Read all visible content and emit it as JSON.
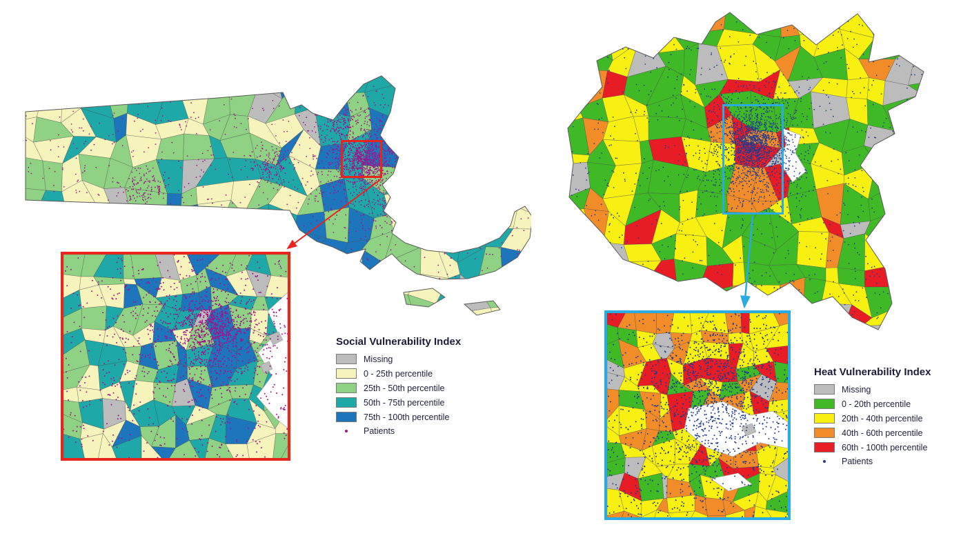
{
  "left_panel": {
    "legend": {
      "title": "Social Vulnerability Index",
      "items": [
        {
          "label": "Missing",
          "color": "#bcbcbc",
          "type": "swatch"
        },
        {
          "label": "0 - 25th percentile",
          "color": "#f6f4bb",
          "type": "swatch"
        },
        {
          "label": "25th - 50th percentile",
          "color": "#8fd283",
          "type": "swatch"
        },
        {
          "label": "50th - 75th percentile",
          "color": "#1fa8a8",
          "type": "swatch"
        },
        {
          "label": "75th - 100th percentile",
          "color": "#1d76bb",
          "type": "swatch"
        },
        {
          "label": "Patients",
          "color": "#a2128c",
          "type": "point"
        }
      ]
    },
    "highlight_color": "#e8251d",
    "patient_color": "#a2128c"
  },
  "right_panel": {
    "legend": {
      "title": "Heat Vulnerability Index",
      "items": [
        {
          "label": "Missing",
          "color": "#bcbcbc",
          "type": "swatch"
        },
        {
          "label": "0 - 20th percentile",
          "color": "#3fb926",
          "type": "swatch"
        },
        {
          "label": "20th - 40th percentile",
          "color": "#f7f011",
          "type": "swatch"
        },
        {
          "label": "40th - 60th percentile",
          "color": "#f28c28",
          "type": "swatch"
        },
        {
          "label": "60th - 100th percentile",
          "color": "#e81c24",
          "type": "swatch"
        },
        {
          "label": "Patients",
          "color": "#223c8f",
          "type": "point"
        }
      ]
    },
    "highlight_color": "#2aabe2",
    "patient_color": "#223c8f"
  }
}
